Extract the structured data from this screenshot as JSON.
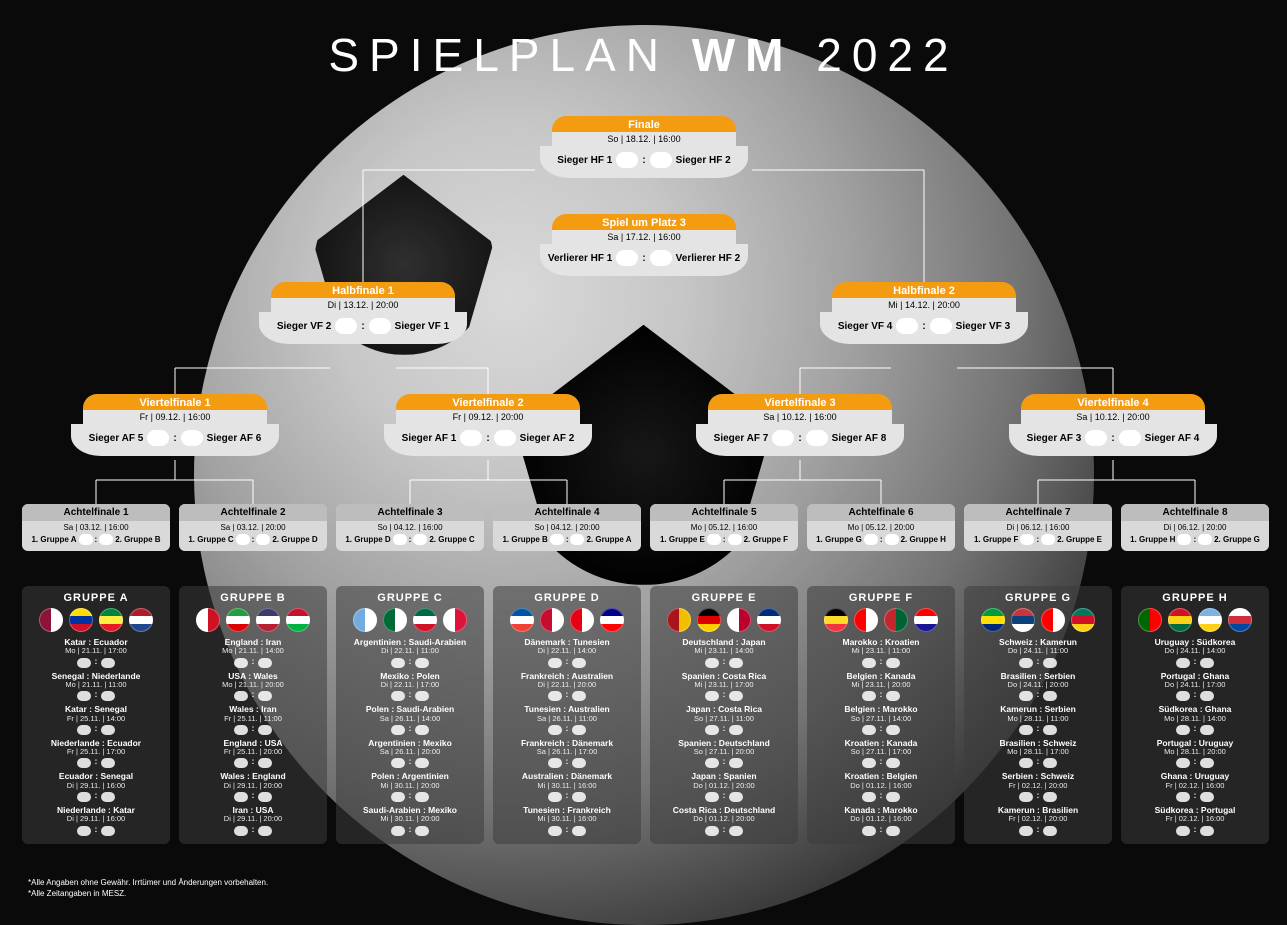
{
  "title_pre": "SPIELPLAN ",
  "title_bold": "WM",
  "title_post": " 2022",
  "colors": {
    "accent": "#f39c12",
    "grey_hdr": "#bdbdbd",
    "card": "#e4e4e4",
    "group_bg": "rgba(60,60,60,0.55)"
  },
  "footnotes": [
    "*Alle Angaben ohne Gewähr. Irrtümer und Änderungen vorbehalten.",
    "*Alle Zeitangaben in MESZ."
  ],
  "finale": {
    "title": "Finale",
    "date": "So | 18.12. | 16:00",
    "left": "Sieger HF 1",
    "right": "Sieger HF 2"
  },
  "platz3": {
    "title": "Spiel um Platz 3",
    "date": "Sa | 17.12. | 16:00",
    "left": "Verlierer HF 1",
    "right": "Verlierer HF 2"
  },
  "hf": [
    {
      "title": "Halbfinale 1",
      "date": "Di | 13.12. | 20:00",
      "left": "Sieger VF 2",
      "right": "Sieger VF 1"
    },
    {
      "title": "Halbfinale 2",
      "date": "Mi | 14.12. | 20:00",
      "left": "Sieger VF 4",
      "right": "Sieger VF 3"
    }
  ],
  "vf": [
    {
      "title": "Viertelfinale 1",
      "date": "Fr | 09.12. | 16:00",
      "left": "Sieger AF 5",
      "right": "Sieger AF 6"
    },
    {
      "title": "Viertelfinale 2",
      "date": "Fr | 09.12. | 20:00",
      "left": "Sieger AF 1",
      "right": "Sieger AF 2"
    },
    {
      "title": "Viertelfinale 3",
      "date": "Sa | 10.12. | 16:00",
      "left": "Sieger AF 7",
      "right": "Sieger AF 8"
    },
    {
      "title": "Viertelfinale 4",
      "date": "Sa | 10.12. | 20:00",
      "left": "Sieger AF 3",
      "right": "Sieger AF 4"
    }
  ],
  "af": [
    {
      "title": "Achtelfinale 1",
      "date": "Sa | 03.12. | 16:00",
      "left": "1. Gruppe A",
      "right": "2. Gruppe B"
    },
    {
      "title": "Achtelfinale 2",
      "date": "Sa | 03.12. | 20:00",
      "left": "1. Gruppe C",
      "right": "2. Gruppe D"
    },
    {
      "title": "Achtelfinale 3",
      "date": "So | 04.12. | 16:00",
      "left": "1. Gruppe D",
      "right": "2. Gruppe C"
    },
    {
      "title": "Achtelfinale 4",
      "date": "So | 04.12. | 20:00",
      "left": "1. Gruppe B",
      "right": "2. Gruppe A"
    },
    {
      "title": "Achtelfinale 5",
      "date": "Mo | 05.12. | 16:00",
      "left": "1. Gruppe E",
      "right": "2. Gruppe F"
    },
    {
      "title": "Achtelfinale 6",
      "date": "Mo | 05.12. | 20:00",
      "left": "1. Gruppe G",
      "right": "2. Gruppe H"
    },
    {
      "title": "Achtelfinale 7",
      "date": "Di | 06.12. | 16:00",
      "left": "1. Gruppe F",
      "right": "2. Gruppe E"
    },
    {
      "title": "Achtelfinale 8",
      "date": "Di | 06.12. | 20:00",
      "left": "1. Gruppe H",
      "right": "2. Gruppe G"
    }
  ],
  "groups": [
    {
      "name": "GRUPPE A",
      "flags": [
        "#8a1538|#ffffff",
        "#ffdd00|#0033a0|#ce1126",
        "#00853f|#fdef42|#e31b23",
        "#ae1c28|#ffffff|#21468b"
      ],
      "matches": [
        {
          "t": "Katar : Ecuador",
          "d": "Mo | 21.11. | 17:00"
        },
        {
          "t": "Senegal : Niederlande",
          "d": "Mo | 21.11. | 11:00"
        },
        {
          "t": "Katar : Senegal",
          "d": "Fr | 25.11. | 14:00"
        },
        {
          "t": "Niederlande : Ecuador",
          "d": "Fr | 25.11. | 17:00"
        },
        {
          "t": "Ecuador : Senegal",
          "d": "Di | 29.11. | 16:00"
        },
        {
          "t": "Niederlande : Katar",
          "d": "Di | 29.11. | 16:00"
        }
      ]
    },
    {
      "name": "GRUPPE B",
      "flags": [
        "#ffffff|#ce1124",
        "#239f40|#ffffff|#da0000",
        "#3c3b6e|#ffffff|#b22234",
        "#c8102e|#ffffff|#00b140"
      ],
      "matches": [
        {
          "t": "England : Iran",
          "d": "Mo | 21.11. | 14:00"
        },
        {
          "t": "USA : Wales",
          "d": "Mo | 21.11. | 20:00"
        },
        {
          "t": "Wales : Iran",
          "d": "Fr | 25.11. | 11:00"
        },
        {
          "t": "England : USA",
          "d": "Fr | 25.11. | 20:00"
        },
        {
          "t": "Wales : England",
          "d": "Di | 29.11. | 20:00"
        },
        {
          "t": "Iran : USA",
          "d": "Di | 29.11. | 20:00"
        }
      ]
    },
    {
      "name": "GRUPPE C",
      "flags": [
        "#74acdf|#ffffff",
        "#006c35|#ffffff",
        "#006847|#ffffff|#ce1126",
        "#ffffff|#dc143c"
      ],
      "matches": [
        {
          "t": "Argentinien : Saudi-Arabien",
          "d": "Di | 22.11. | 11:00"
        },
        {
          "t": "Mexiko : Polen",
          "d": "Di | 22.11. | 17:00"
        },
        {
          "t": "Polen : Saudi-Arabien",
          "d": "Sa | 26.11. | 14:00"
        },
        {
          "t": "Argentinien : Mexiko",
          "d": "Sa | 26.11. | 20:00"
        },
        {
          "t": "Polen : Argentinien",
          "d": "Mi | 30.11. | 20:00"
        },
        {
          "t": "Saudi-Arabien : Mexiko",
          "d": "Mi | 30.11. | 20:00"
        }
      ]
    },
    {
      "name": "GRUPPE D",
      "flags": [
        "#0055a4|#ffffff|#ef4135",
        "#c60c30|#ffffff",
        "#e70013|#ffffff",
        "#00008b|#ffffff|#ff0000"
      ],
      "matches": [
        {
          "t": "Dänemark : Tunesien",
          "d": "Di | 22.11. | 14:00"
        },
        {
          "t": "Frankreich : Australien",
          "d": "Di | 22.11. | 20:00"
        },
        {
          "t": "Tunesien : Australien",
          "d": "Sa | 26.11. | 11:00"
        },
        {
          "t": "Frankreich : Dänemark",
          "d": "Sa | 26.11. | 17:00"
        },
        {
          "t": "Australien : Dänemark",
          "d": "Mi | 30.11. | 16:00"
        },
        {
          "t": "Tunesien : Frankreich",
          "d": "Mi | 30.11. | 16:00"
        }
      ]
    },
    {
      "name": "GRUPPE E",
      "flags": [
        "#aa151b|#f1bf00",
        "#000000|#dd0000|#ffce00",
        "#ffffff|#bc002d",
        "#002b7f|#ffffff|#ce1126"
      ],
      "matches": [
        {
          "t": "Deutschland : Japan",
          "d": "Mi | 23.11. | 14:00"
        },
        {
          "t": "Spanien : Costa Rica",
          "d": "Mi | 23.11. | 17:00"
        },
        {
          "t": "Japan : Costa Rica",
          "d": "So | 27.11. | 11:00"
        },
        {
          "t": "Spanien : Deutschland",
          "d": "So | 27.11. | 20:00"
        },
        {
          "t": "Japan : Spanien",
          "d": "Do | 01.12. | 20:00"
        },
        {
          "t": "Costa Rica : Deutschland",
          "d": "Do | 01.12. | 20:00"
        }
      ]
    },
    {
      "name": "GRUPPE F",
      "flags": [
        "#000000|#fdda24|#ef3340",
        "#ff0000|#ffffff",
        "#c1272d|#006233",
        "#ff0000|#ffffff|#171796"
      ],
      "matches": [
        {
          "t": "Marokko : Kroatien",
          "d": "Mi | 23.11. | 11:00"
        },
        {
          "t": "Belgien : Kanada",
          "d": "Mi | 23.11. | 20:00"
        },
        {
          "t": "Belgien : Marokko",
          "d": "So | 27.11. | 14:00"
        },
        {
          "t": "Kroatien : Kanada",
          "d": "So | 27.11. | 17:00"
        },
        {
          "t": "Kroatien : Belgien",
          "d": "Do | 01.12. | 16:00"
        },
        {
          "t": "Kanada : Marokko",
          "d": "Do | 01.12. | 16:00"
        }
      ]
    },
    {
      "name": "GRUPPE G",
      "flags": [
        "#009c3b|#ffdf00|#002776",
        "#c6363c|#0c4076|#ffffff",
        "#ff0000|#ffffff",
        "#007a5e|#ce1126|#fcd116"
      ],
      "matches": [
        {
          "t": "Schweiz : Kamerun",
          "d": "Do | 24.11. | 11:00"
        },
        {
          "t": "Brasilien : Serbien",
          "d": "Do | 24.11. | 20:00"
        },
        {
          "t": "Kamerun : Serbien",
          "d": "Mo | 28.11. | 11:00"
        },
        {
          "t": "Brasilien : Schweiz",
          "d": "Mo | 28.11. | 17:00"
        },
        {
          "t": "Serbien : Schweiz",
          "d": "Fr | 02.12. | 20:00"
        },
        {
          "t": "Kamerun : Brasilien",
          "d": "Fr | 02.12. | 20:00"
        }
      ]
    },
    {
      "name": "GRUPPE H",
      "flags": [
        "#006600|#ff0000",
        "#ce1126|#fcd116|#006b3f",
        "#7ab2e1|#ffffff|#fcd116",
        "#ffffff|#cd2e3a|#0047a0"
      ],
      "matches": [
        {
          "t": "Uruguay : Südkorea",
          "d": "Do | 24.11. | 14:00"
        },
        {
          "t": "Portugal : Ghana",
          "d": "Do | 24.11. | 17:00"
        },
        {
          "t": "Südkorea : Ghana",
          "d": "Mo | 28.11. | 14:00"
        },
        {
          "t": "Portugal : Uruguay",
          "d": "Mo | 28.11. | 20:00"
        },
        {
          "t": "Ghana : Uruguay",
          "d": "Fr | 02.12. | 16:00"
        },
        {
          "t": "Südkorea : Portugal",
          "d": "Fr | 02.12. | 16:00"
        }
      ]
    }
  ]
}
